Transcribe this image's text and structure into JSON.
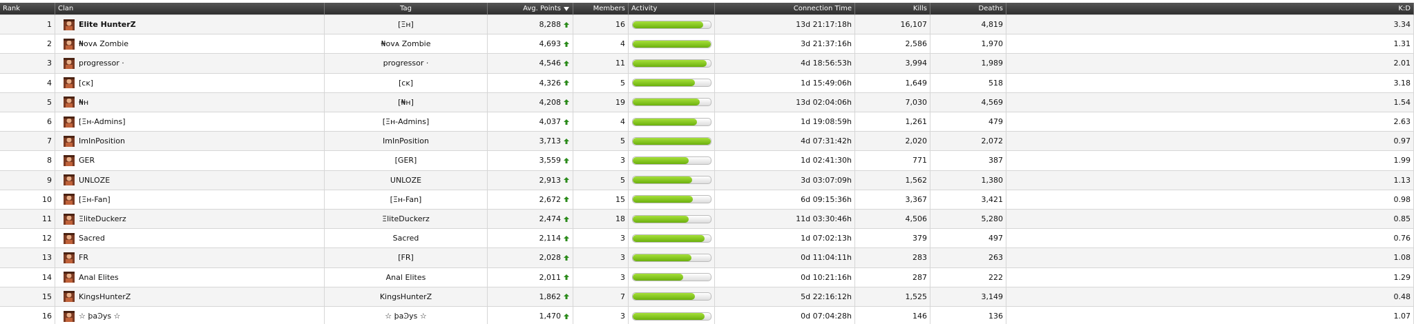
{
  "table": {
    "columns": [
      "Rank",
      "Clan",
      "Tag",
      "Avg. Points",
      "Members",
      "Activity",
      "Connection Time",
      "Kills",
      "Deaths",
      "K:D"
    ],
    "rows": [
      [
        1,
        "Elite HunterZ",
        "[Ξн]",
        "8,288",
        16,
        90,
        "13d 21:17:18h",
        "16,107",
        "4,819",
        "3.34"
      ],
      [
        2,
        "₦ovᴀ Zombie",
        "₦ovᴀ Zombie",
        "4,693",
        4,
        100,
        "3d 21:37:16h",
        "2,586",
        "1,970",
        "1.31"
      ],
      [
        3,
        "progressor ·",
        "progressor ·",
        "4,546",
        11,
        95,
        "4d 18:56:53h",
        "3,994",
        "1,989",
        "2.01"
      ],
      [
        4,
        "[ᴄᴋ]",
        "[ᴄᴋ]",
        "4,326",
        5,
        80,
        "1d 15:49:06h",
        "1,649",
        "518",
        "3.18"
      ],
      [
        5,
        "₦н",
        "[₦н]",
        "4,208",
        19,
        86,
        "13d 02:04:06h",
        "7,030",
        "4,569",
        "1.54"
      ],
      [
        6,
        "[Ξн-Admins]",
        "[Ξн-Admins]",
        "4,037",
        4,
        82,
        "1d 19:08:59h",
        "1,261",
        "479",
        "2.63"
      ],
      [
        7,
        "ImInPosition",
        "ImInPosition",
        "3,713",
        5,
        100,
        "4d 07:31:42h",
        "2,020",
        "2,072",
        "0.97"
      ],
      [
        8,
        "GER",
        "[GER]",
        "3,559",
        3,
        72,
        "1d 02:41:30h",
        "771",
        "387",
        "1.99"
      ],
      [
        9,
        "UNLOZE",
        "UNLOZE",
        "2,913",
        5,
        76,
        "3d 03:07:09h",
        "1,562",
        "1,380",
        "1.13"
      ],
      [
        10,
        "[Ξн-Fan]",
        "[Ξн-Fan]",
        "2,672",
        15,
        77,
        "6d 09:15:36h",
        "3,367",
        "3,421",
        "0.98"
      ],
      [
        11,
        "ΞliteDuckerz",
        "ΞliteDuckerz",
        "2,474",
        18,
        72,
        "11d 03:30:46h",
        "4,506",
        "5,280",
        "0.85"
      ],
      [
        12,
        "Sacred",
        "Sacred",
        "2,114",
        3,
        92,
        "1d 07:02:13h",
        "379",
        "497",
        "0.76"
      ],
      [
        13,
        "FR",
        "[FR]",
        "2,028",
        3,
        75,
        "0d 11:04:11h",
        "283",
        "263",
        "1.08"
      ],
      [
        14,
        "Anal Elites",
        "Anal Elites",
        "2,011",
        3,
        65,
        "0d 10:21:16h",
        "287",
        "222",
        "1.29"
      ],
      [
        15,
        "KingsHunterZ",
        "KingsHunterZ",
        "1,862",
        7,
        80,
        "5d 22:16:12h",
        "1,525",
        "3,149",
        "0.48"
      ],
      [
        16,
        "☆ ϸaϿys ☆",
        "☆ ϸaϿys ☆",
        "1,470",
        3,
        92,
        "0d 07:04:28h",
        "146",
        "136",
        "1.07"
      ]
    ]
  }
}
